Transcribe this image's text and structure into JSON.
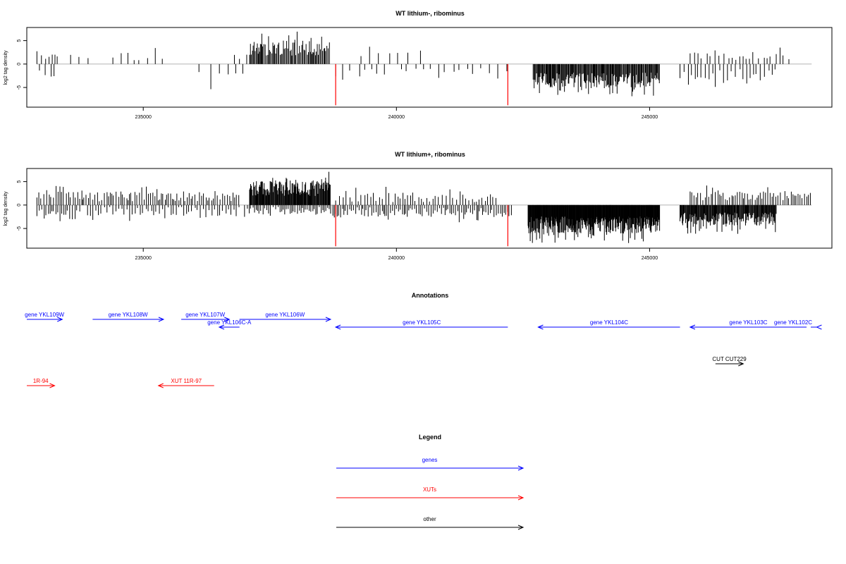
{
  "panels": [
    {
      "title": "WT lithium-, ribominus",
      "ylabel": "log2 tag density",
      "xticks": [
        235000,
        240000,
        245000
      ],
      "yticks": [
        -5,
        0,
        5
      ],
      "xlim": [
        232700,
        248600
      ],
      "ylim": [
        -9.2,
        7.8
      ],
      "highlight_color": "#ff0000",
      "highlights": [
        {
          "x": 238800,
          "y": -8.8
        },
        {
          "x": 242200,
          "y": -8.8
        }
      ],
      "bar_regions": [
        {
          "start": 232900,
          "end": 233300,
          "step": 70,
          "mean": 2.0,
          "sign": 1,
          "spread": 1.0
        },
        {
          "start": 232950,
          "end": 233300,
          "step": 90,
          "mean": -2.0,
          "sign": -1,
          "spread": 1.0
        },
        {
          "start": 233300,
          "end": 234000,
          "step": 200,
          "mean": 1.5,
          "sign": 1,
          "spread": 0.5
        },
        {
          "start": 234400,
          "end": 235500,
          "step": 150,
          "mean": 1.8,
          "sign": 1,
          "spread": 1.0
        },
        {
          "start": 236100,
          "end": 237100,
          "step": 200,
          "mean": -2.5,
          "sign": -1,
          "spread": 1.5
        },
        {
          "start": 236800,
          "end": 237100,
          "step": 120,
          "mean": 1.5,
          "sign": 1,
          "spread": 0.5
        },
        {
          "start": 237100,
          "end": 238700,
          "step": 20,
          "mean": 3.4,
          "sign": 1,
          "spread": 1.6
        },
        {
          "start": 238800,
          "end": 239900,
          "step": 160,
          "mean": -2.0,
          "sign": -1,
          "spread": 1.0
        },
        {
          "start": 239300,
          "end": 240700,
          "step": 180,
          "mean": 1.8,
          "sign": 1,
          "spread": 1.2
        },
        {
          "start": 240100,
          "end": 242200,
          "step": 150,
          "mean": -1.5,
          "sign": -1,
          "spread": 0.8
        },
        {
          "start": 242700,
          "end": 245200,
          "step": 15,
          "mean": -3.4,
          "sign": -1,
          "spread": 1.6
        },
        {
          "start": 245600,
          "end": 247500,
          "step": 70,
          "mean": -2.3,
          "sign": -1,
          "spread": 1.2
        },
        {
          "start": 245800,
          "end": 247800,
          "step": 90,
          "mean": 1.7,
          "sign": 1,
          "spread": 0.9
        }
      ]
    },
    {
      "title": "WT lithium+, ribominus",
      "ylabel": "log2 tag density",
      "xticks": [
        235000,
        240000,
        245000
      ],
      "yticks": [
        -5,
        0,
        5
      ],
      "xlim": [
        232700,
        248600
      ],
      "ylim": [
        -9.2,
        7.8
      ],
      "highlight_color": "#ff0000",
      "highlights": [
        {
          "x": 238800,
          "y": -8.8
        },
        {
          "x": 242200,
          "y": -8.8
        }
      ],
      "bar_regions": [
        {
          "start": 232900,
          "end": 233800,
          "step": 45,
          "mean": 2.3,
          "sign": 1,
          "spread": 1.0
        },
        {
          "start": 232900,
          "end": 233800,
          "step": 45,
          "mean": -2.0,
          "sign": -1,
          "spread": 1.2
        },
        {
          "start": 233800,
          "end": 236900,
          "step": 40,
          "mean": 1.8,
          "sign": 1,
          "spread": 1.0
        },
        {
          "start": 233900,
          "end": 236900,
          "step": 55,
          "mean": -1.4,
          "sign": -1,
          "spread": 1.0
        },
        {
          "start": 237100,
          "end": 238700,
          "step": 12,
          "mean": 3.6,
          "sign": 1,
          "spread": 1.7
        },
        {
          "start": 237000,
          "end": 238700,
          "step": 40,
          "mean": -1.2,
          "sign": -1,
          "spread": 0.8
        },
        {
          "start": 238700,
          "end": 242300,
          "step": 35,
          "mean": -1.5,
          "sign": -1,
          "spread": 1.0
        },
        {
          "start": 238800,
          "end": 242000,
          "step": 60,
          "mean": 1.6,
          "sign": 1,
          "spread": 1.0
        },
        {
          "start": 242600,
          "end": 245200,
          "step": 8,
          "mean": -4.2,
          "sign": -1,
          "spread": 1.8
        },
        {
          "start": 245600,
          "end": 247500,
          "step": 12,
          "mean": -3.0,
          "sign": -1,
          "spread": 1.4
        },
        {
          "start": 245800,
          "end": 248200,
          "step": 40,
          "mean": 2.0,
          "sign": 1,
          "spread": 1.0
        }
      ]
    }
  ],
  "annotations": {
    "title": "Annotations",
    "xlim": [
      232700,
      248600
    ],
    "features": [
      {
        "label": "gene YKL109W",
        "start": 232700,
        "end": 233400,
        "strand": "+",
        "color": "#0000ff",
        "row": 0
      },
      {
        "label": "gene YKL108W",
        "start": 234000,
        "end": 235400,
        "strand": "+",
        "color": "#0000ff",
        "row": 0
      },
      {
        "label": "gene YKL107W",
        "start": 235750,
        "end": 236700,
        "strand": "+",
        "color": "#0000ff",
        "row": 0
      },
      {
        "label": "gene YKL106W",
        "start": 236900,
        "end": 238700,
        "strand": "+",
        "color": "#0000ff",
        "row": 0
      },
      {
        "label": "gene YKL106C-A",
        "start": 236500,
        "end": 236900,
        "strand": "-",
        "color": "#0000ff",
        "row": 1
      },
      {
        "label": "gene YKL105C",
        "start": 238800,
        "end": 242200,
        "strand": "-",
        "color": "#0000ff",
        "row": 1
      },
      {
        "label": "gene YKL104C",
        "start": 242800,
        "end": 245600,
        "strand": "-",
        "color": "#0000ff",
        "row": 1
      },
      {
        "label": "gene YKL103C",
        "start": 245800,
        "end": 248100,
        "strand": "-",
        "color": "#0000ff",
        "row": 1
      },
      {
        "label": "gene YKL102C",
        "start": 248300,
        "end": 248600,
        "strand": "-",
        "color": "#0000ff",
        "row": 1
      },
      {
        "label": "CUT CUT229",
        "start": 246300,
        "end": 246850,
        "strand": "+",
        "color": "#000000",
        "row": 2
      },
      {
        "label": "1R-94",
        "start": 232700,
        "end": 233250,
        "strand": "+",
        "color": "#ff0000",
        "row": 3
      },
      {
        "label": "XUT 11R-97",
        "start": 235300,
        "end": 236400,
        "strand": "-",
        "color": "#ff0000",
        "row": 3
      }
    ]
  },
  "legend": {
    "title": "Legend",
    "items": [
      {
        "label": "genes",
        "color": "#0000ff"
      },
      {
        "label": "XUTs",
        "color": "#ff0000"
      },
      {
        "label": "other",
        "color": "#000000"
      }
    ]
  }
}
